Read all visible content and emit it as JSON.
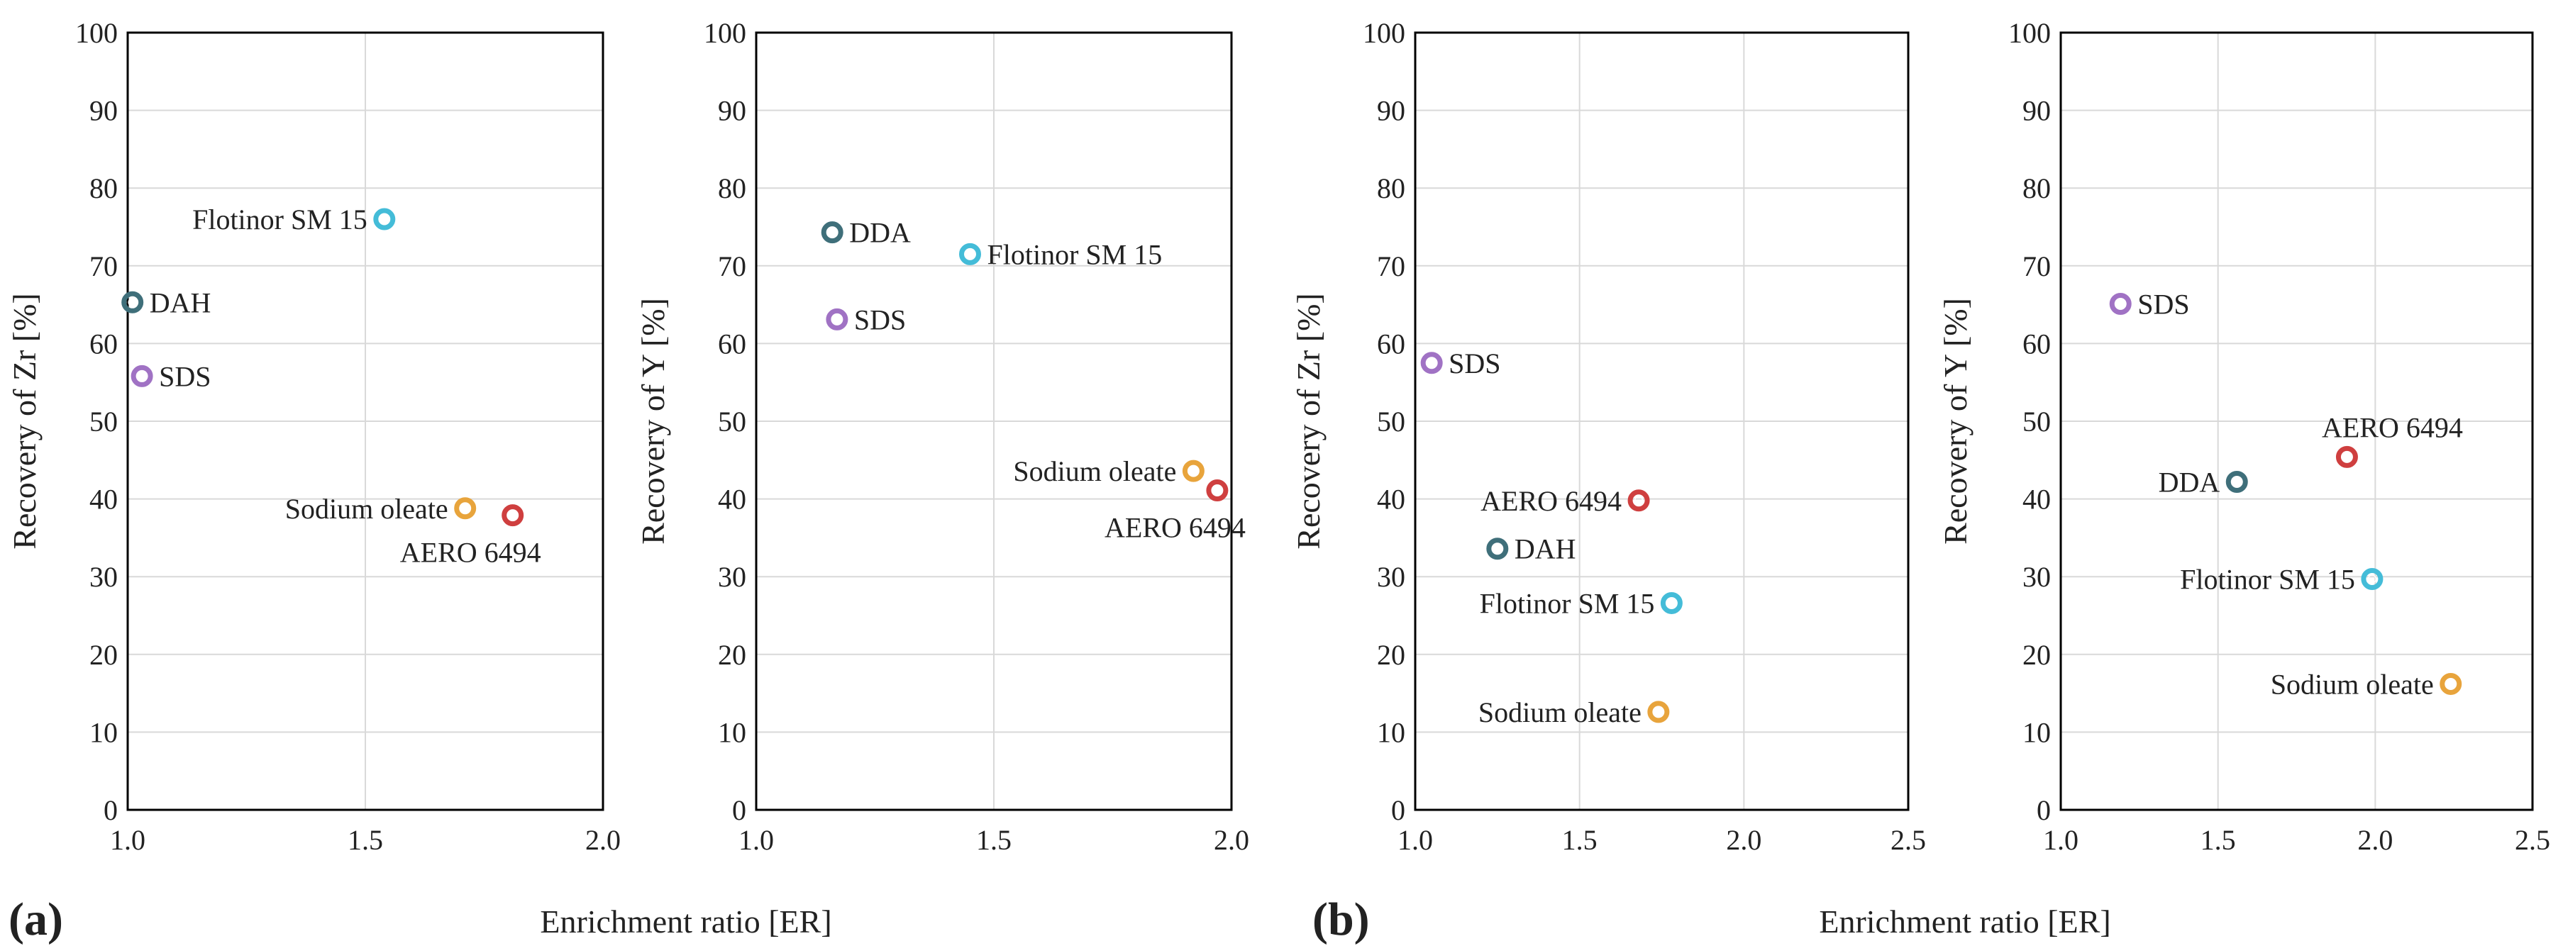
{
  "figure": {
    "panel_labels": [
      "(a)",
      "(b)"
    ],
    "shared_xlabel": "Enrichment ratio [ER]",
    "marker_colors": {
      "DAH": "#3f6f7a",
      "DDA": "#3f6f7a",
      "SDS": "#a072c4",
      "Flotinor SM 15": "#44bcd8",
      "Sodium oleate": "#e8a43c",
      "AERO 6494": "#cf3f3f"
    }
  },
  "chart_data": [
    {
      "panel": "(a)",
      "type": "scatter",
      "ylabel": "Recovery of  Zr [%]",
      "xlim": [
        1.0,
        2.0
      ],
      "ylim": [
        0,
        100
      ],
      "xticks": [
        "1.0",
        "1.5",
        "2.0"
      ],
      "yticks": [
        "0",
        "10",
        "20",
        "30",
        "40",
        "50",
        "60",
        "70",
        "80",
        "90",
        "100"
      ],
      "grid": true,
      "points": [
        {
          "label": "Flotinor SM 15",
          "x": 1.54,
          "y": 76,
          "label_side": "left"
        },
        {
          "label": "DAH",
          "x": 1.01,
          "y": 65.3,
          "label_side": "right"
        },
        {
          "label": "SDS",
          "x": 1.03,
          "y": 55.8,
          "label_side": "right"
        },
        {
          "label": "Sodium oleate",
          "x": 1.71,
          "y": 38.8,
          "label_side": "left"
        },
        {
          "label": "AERO 6494",
          "x": 1.81,
          "y": 37.9,
          "label_side": "below"
        }
      ]
    },
    {
      "panel": "",
      "type": "scatter",
      "ylabel": "Recovery of  Y [%]",
      "xlim": [
        1.0,
        2.0
      ],
      "ylim": [
        0,
        100
      ],
      "xticks": [
        "1.0",
        "1.5",
        "2.0"
      ],
      "yticks": [
        "0",
        "10",
        "20",
        "30",
        "40",
        "50",
        "60",
        "70",
        "80",
        "90",
        "100"
      ],
      "grid": true,
      "points": [
        {
          "label": "DDA",
          "x": 1.16,
          "y": 74.3,
          "label_side": "right"
        },
        {
          "label": "Flotinor SM 15",
          "x": 1.45,
          "y": 71.5,
          "label_side": "right"
        },
        {
          "label": "SDS",
          "x": 1.17,
          "y": 63.1,
          "label_side": "right"
        },
        {
          "label": "Sodium oleate",
          "x": 1.92,
          "y": 43.6,
          "label_side": "left"
        },
        {
          "label": "AERO 6494",
          "x": 1.97,
          "y": 41.1,
          "label_side": "below"
        }
      ]
    },
    {
      "panel": "(b)",
      "type": "scatter",
      "ylabel": "Recovery of  Zr [%]",
      "xlim": [
        1.0,
        2.5
      ],
      "ylim": [
        0,
        100
      ],
      "xticks": [
        "1.0",
        "1.5",
        "2.0",
        "2.5"
      ],
      "yticks": [
        "0",
        "10",
        "20",
        "30",
        "40",
        "50",
        "60",
        "70",
        "80",
        "90",
        "100"
      ],
      "grid": true,
      "points": [
        {
          "label": "SDS",
          "x": 1.05,
          "y": 57.5,
          "label_side": "right"
        },
        {
          "label": "AERO 6494",
          "x": 1.68,
          "y": 39.8,
          "label_side": "left"
        },
        {
          "label": "DAH",
          "x": 1.25,
          "y": 33.6,
          "label_side": "right"
        },
        {
          "label": "Flotinor SM 15",
          "x": 1.78,
          "y": 26.6,
          "label_side": "left"
        },
        {
          "label": "Sodium oleate",
          "x": 1.74,
          "y": 12.6,
          "label_side": "left"
        }
      ]
    },
    {
      "panel": "",
      "type": "scatter",
      "ylabel": "Recovery of  Y [%]",
      "xlim": [
        1.0,
        2.5
      ],
      "ylim": [
        0,
        100
      ],
      "xticks": [
        "1.0",
        "1.5",
        "2.0",
        "2.5"
      ],
      "yticks": [
        "0",
        "10",
        "20",
        "30",
        "40",
        "50",
        "60",
        "70",
        "80",
        "90",
        "100"
      ],
      "grid": true,
      "points": [
        {
          "label": "SDS",
          "x": 1.19,
          "y": 65.1,
          "label_side": "right"
        },
        {
          "label": "AERO 6494",
          "x": 1.91,
          "y": 45.4,
          "label_side": "above"
        },
        {
          "label": "DDA",
          "x": 1.56,
          "y": 42.2,
          "label_side": "left"
        },
        {
          "label": "Flotinor SM 15",
          "x": 1.99,
          "y": 29.7,
          "label_side": "left"
        },
        {
          "label": "Sodium oleate",
          "x": 2.24,
          "y": 16.2,
          "label_side": "left"
        }
      ]
    }
  ]
}
